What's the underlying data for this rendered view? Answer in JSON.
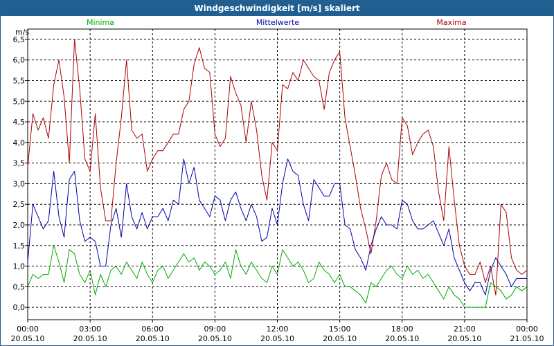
{
  "window": {
    "title": "Windgeschwindigkeit [m/s] skaliert"
  },
  "legend": [
    {
      "name": "Minima",
      "color": "#00aa00"
    },
    {
      "name": "Mittelwerte",
      "color": "#0000aa"
    },
    {
      "name": "Maxima",
      "color": "#aa0000"
    }
  ],
  "chart_data": {
    "type": "line",
    "title": "Windgeschwindigkeit [m/s] skaliert",
    "ylabel": "m/s",
    "ylim": [
      -0.3,
      6.75
    ],
    "xlim": [
      0,
      24
    ],
    "yticks": [
      0.0,
      0.5,
      1.0,
      1.5,
      2.0,
      2.5,
      3.0,
      3.5,
      4.0,
      4.5,
      5.0,
      5.5,
      6.0,
      6.5
    ],
    "ytick_labels": [
      "0,0",
      "0,5",
      "1,0",
      "1,5",
      "2,0",
      "2,5",
      "3,0",
      "3,5",
      "4,0",
      "4,5",
      "5,0",
      "5,5",
      "6,0",
      "6,5"
    ],
    "xticks": [
      0,
      3,
      6,
      9,
      12,
      15,
      18,
      21,
      24
    ],
    "xtick_labels": [
      [
        "00:00",
        "20.05.10"
      ],
      [
        "03:00",
        "20.05.10"
      ],
      [
        "06:00",
        "20.05.10"
      ],
      [
        "09:00",
        "20.05.10"
      ],
      [
        "12:00",
        "20.05.10"
      ],
      [
        "15:00",
        "20.05.10"
      ],
      [
        "18:00",
        "20.05.10"
      ],
      [
        "21:00",
        "20.05.10"
      ],
      [
        "00:00",
        "21.05.10"
      ]
    ],
    "grid": true,
    "series": [
      {
        "name": "Maxima",
        "color": "#aa0000",
        "x": [
          0.0,
          0.25,
          0.5,
          0.75,
          1.0,
          1.25,
          1.5,
          1.75,
          2.0,
          2.25,
          2.5,
          2.75,
          3.0,
          3.25,
          3.5,
          3.75,
          4.0,
          4.25,
          4.5,
          4.75,
          5.0,
          5.25,
          5.5,
          5.75,
          6.0,
          6.25,
          6.5,
          6.75,
          7.0,
          7.25,
          7.5,
          7.75,
          8.0,
          8.25,
          8.5,
          8.75,
          9.0,
          9.25,
          9.5,
          9.75,
          10.0,
          10.25,
          10.5,
          10.75,
          11.0,
          11.25,
          11.5,
          11.75,
          12.0,
          12.25,
          12.5,
          12.75,
          13.0,
          13.25,
          13.5,
          13.75,
          14.0,
          14.25,
          14.5,
          14.75,
          15.0,
          15.25,
          15.5,
          15.75,
          16.0,
          16.25,
          16.5,
          16.75,
          17.0,
          17.25,
          17.5,
          17.75,
          18.0,
          18.25,
          18.5,
          18.75,
          19.0,
          19.25,
          19.5,
          19.75,
          20.0,
          20.25,
          20.5,
          20.75,
          21.0,
          21.25,
          21.5,
          21.75,
          22.0,
          22.25,
          22.5,
          22.75,
          23.0,
          23.25,
          23.5,
          23.75,
          24.0
        ],
        "values": [
          3.4,
          4.7,
          4.3,
          4.6,
          4.1,
          5.4,
          6.0,
          5.1,
          3.5,
          6.5,
          5.3,
          3.6,
          3.3,
          4.7,
          2.9,
          2.1,
          2.1,
          3.5,
          4.6,
          6.0,
          4.3,
          4.1,
          4.2,
          3.3,
          3.6,
          3.8,
          3.8,
          4.0,
          4.2,
          4.2,
          4.8,
          5.0,
          5.9,
          6.3,
          5.8,
          5.7,
          4.2,
          3.9,
          4.1,
          5.6,
          5.2,
          4.9,
          4.0,
          5.0,
          4.3,
          3.2,
          2.6,
          4.0,
          3.8,
          5.4,
          5.3,
          5.7,
          5.5,
          6.0,
          5.8,
          5.6,
          5.5,
          4.8,
          5.7,
          6.0,
          6.2,
          4.6,
          3.9,
          3.2,
          2.4,
          1.9,
          1.3,
          2.1,
          3.2,
          3.5,
          3.1,
          3.0,
          4.6,
          4.4,
          3.7,
          4.0,
          4.2,
          4.3,
          3.9,
          2.8,
          2.1,
          3.9,
          2.6,
          1.5,
          1.0,
          0.8,
          0.8,
          1.1,
          0.6,
          1.0,
          0.3,
          2.5,
          2.3,
          1.2,
          0.9,
          0.8,
          0.9
        ]
      },
      {
        "name": "Mittelwerte",
        "color": "#0000aa",
        "x": [
          0.0,
          0.25,
          0.5,
          0.75,
          1.0,
          1.25,
          1.5,
          1.75,
          2.0,
          2.25,
          2.5,
          2.75,
          3.0,
          3.25,
          3.5,
          3.75,
          4.0,
          4.25,
          4.5,
          4.75,
          5.0,
          5.25,
          5.5,
          5.75,
          6.0,
          6.25,
          6.5,
          6.75,
          7.0,
          7.25,
          7.5,
          7.75,
          8.0,
          8.25,
          8.5,
          8.75,
          9.0,
          9.25,
          9.5,
          9.75,
          10.0,
          10.25,
          10.5,
          10.75,
          11.0,
          11.25,
          11.5,
          11.75,
          12.0,
          12.25,
          12.5,
          12.75,
          13.0,
          13.25,
          13.5,
          13.75,
          14.0,
          14.25,
          14.5,
          14.75,
          15.0,
          15.25,
          15.5,
          15.75,
          16.0,
          16.25,
          16.5,
          16.75,
          17.0,
          17.25,
          17.5,
          17.75,
          18.0,
          18.25,
          18.5,
          18.75,
          19.0,
          19.25,
          19.5,
          19.75,
          20.0,
          20.25,
          20.5,
          20.75,
          21.0,
          21.25,
          21.5,
          21.75,
          22.0,
          22.25,
          22.5,
          22.75,
          23.0,
          23.25,
          23.5,
          23.75,
          24.0
        ],
        "values": [
          1.1,
          2.5,
          2.2,
          1.9,
          2.1,
          3.3,
          2.2,
          1.7,
          3.1,
          3.3,
          2.1,
          1.6,
          1.7,
          1.6,
          1.0,
          1.0,
          2.0,
          2.4,
          1.7,
          3.0,
          2.2,
          1.9,
          2.3,
          1.9,
          2.2,
          2.2,
          2.4,
          2.1,
          2.6,
          2.5,
          3.6,
          3.0,
          3.4,
          2.6,
          2.4,
          2.2,
          2.7,
          2.6,
          2.1,
          2.6,
          2.8,
          2.4,
          2.1,
          2.5,
          2.2,
          1.6,
          1.7,
          2.4,
          2.0,
          3.0,
          3.6,
          3.3,
          3.2,
          2.5,
          2.1,
          3.1,
          2.9,
          2.7,
          2.7,
          3.0,
          3.0,
          2.0,
          1.9,
          1.4,
          1.2,
          0.9,
          1.5,
          1.9,
          2.2,
          2.0,
          2.0,
          1.9,
          2.6,
          2.5,
          2.1,
          1.9,
          1.9,
          2.0,
          2.1,
          1.8,
          1.5,
          1.9,
          1.2,
          0.9,
          0.6,
          0.4,
          0.6,
          0.6,
          0.3,
          0.9,
          1.2,
          1.0,
          0.8,
          0.5,
          0.7,
          0.7,
          0.7
        ]
      },
      {
        "name": "Minima",
        "color": "#00aa00",
        "x": [
          0.0,
          0.25,
          0.5,
          0.75,
          1.0,
          1.25,
          1.5,
          1.75,
          2.0,
          2.25,
          2.5,
          2.75,
          3.0,
          3.25,
          3.5,
          3.75,
          4.0,
          4.25,
          4.5,
          4.75,
          5.0,
          5.25,
          5.5,
          5.75,
          6.0,
          6.25,
          6.5,
          6.75,
          7.0,
          7.25,
          7.5,
          7.75,
          8.0,
          8.25,
          8.5,
          8.75,
          9.0,
          9.25,
          9.5,
          9.75,
          10.0,
          10.25,
          10.5,
          10.75,
          11.0,
          11.25,
          11.5,
          11.75,
          12.0,
          12.25,
          12.5,
          12.75,
          13.0,
          13.25,
          13.5,
          13.75,
          14.0,
          14.25,
          14.5,
          14.75,
          15.0,
          15.25,
          15.5,
          15.75,
          16.0,
          16.25,
          16.5,
          16.75,
          17.0,
          17.25,
          17.5,
          17.75,
          18.0,
          18.25,
          18.5,
          18.75,
          19.0,
          19.25,
          19.5,
          19.75,
          20.0,
          20.25,
          20.5,
          20.75,
          21.0,
          21.25,
          21.5,
          21.75,
          22.0,
          22.25,
          22.5,
          22.75,
          23.0,
          23.25,
          23.5,
          23.75,
          24.0
        ],
        "values": [
          0.5,
          0.8,
          0.7,
          0.8,
          0.8,
          1.5,
          1.1,
          0.6,
          1.4,
          1.3,
          0.8,
          0.6,
          0.9,
          0.3,
          0.8,
          0.5,
          0.9,
          1.0,
          0.8,
          1.1,
          0.9,
          0.7,
          1.1,
          0.8,
          0.6,
          0.9,
          1.0,
          0.7,
          0.9,
          1.1,
          1.3,
          1.1,
          1.2,
          0.9,
          1.1,
          1.0,
          0.8,
          0.9,
          1.1,
          0.7,
          1.4,
          1.0,
          0.8,
          1.1,
          0.9,
          0.7,
          0.6,
          1.0,
          0.8,
          1.4,
          1.2,
          1.0,
          1.1,
          0.9,
          0.6,
          0.7,
          1.1,
          0.9,
          0.8,
          0.6,
          0.8,
          0.5,
          0.5,
          0.4,
          0.3,
          0.1,
          0.6,
          0.5,
          0.7,
          0.9,
          1.0,
          0.8,
          0.7,
          1.0,
          0.8,
          0.9,
          0.7,
          0.8,
          0.6,
          0.4,
          0.2,
          0.5,
          0.3,
          0.2,
          0.0,
          0.0,
          0.0,
          0.0,
          0.0,
          0.6,
          0.5,
          0.4,
          0.2,
          0.3,
          0.5,
          0.4,
          0.5
        ]
      }
    ]
  }
}
